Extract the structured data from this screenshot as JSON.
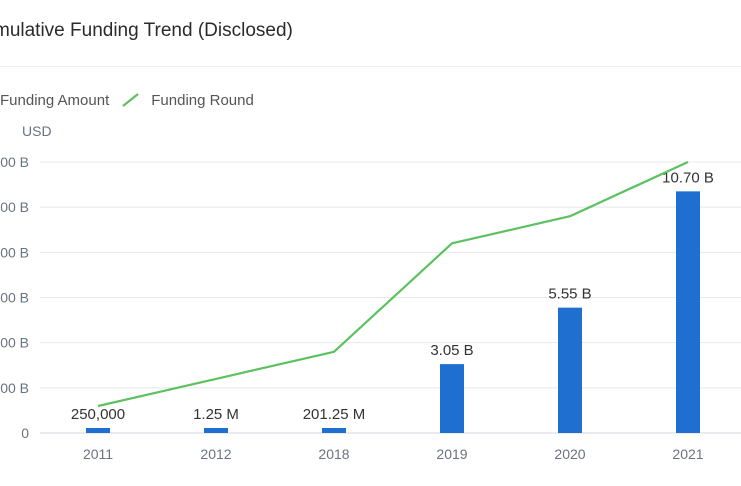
{
  "title": "mulative Funding Trend (Disclosed)",
  "legend": {
    "amount_label": "Funding Amount",
    "round_label": "Funding Round"
  },
  "colors": {
    "bar": "#1f6fd1",
    "line": "#5cc160",
    "grid": "#e6e8ec"
  },
  "chart_data": {
    "type": "bar",
    "title": "mulative Funding Trend (Disclosed)",
    "ylabel": "USD",
    "categories": [
      "2011",
      "2012",
      "2018",
      "2019",
      "2020",
      "2021"
    ],
    "y_tick_labels": [
      "0",
      "00 B",
      "00 B",
      "00 B",
      "00 B",
      "00 B",
      "00 B"
    ],
    "ylim": [
      0,
      12
    ],
    "grid": true,
    "legend_position": "top-left",
    "series": [
      {
        "name": "Funding Amount",
        "type": "bar",
        "values": [
          0.00025,
          0.00125,
          0.20125,
          3.05,
          5.55,
          10.7
        ],
        "labels": [
          "250,000",
          "1.25 M",
          "201.25 M",
          "3.05 B",
          "5.55 B",
          "10.70 B"
        ]
      },
      {
        "name": "Funding Round",
        "type": "line",
        "values": [
          1,
          2,
          3,
          7,
          8,
          10
        ]
      }
    ]
  }
}
